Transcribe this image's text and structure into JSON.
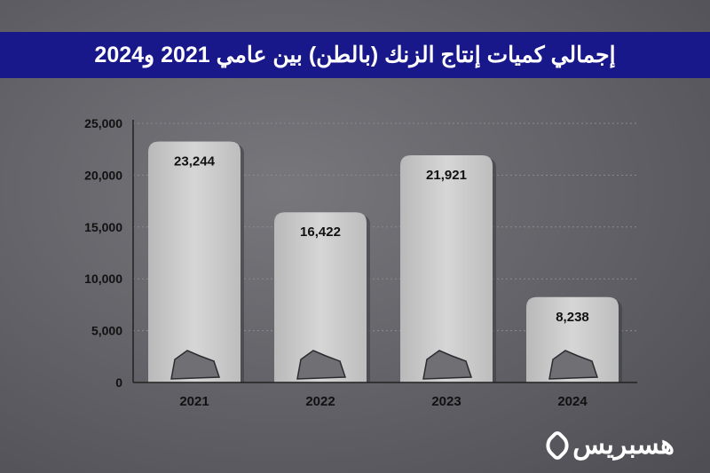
{
  "title": "إجمالي كميات إنتاج الزنك (بالطن) بين عامي 2021 و2024",
  "logo": "هسبريس",
  "colors": {
    "title_bar": "#18188a",
    "bar": "#c9c9c9",
    "background": "#646469"
  },
  "chart_data": {
    "type": "bar",
    "title": "إجمالي كميات إنتاج الزنك (بالطن) بين عامي 2021 و2024",
    "categories": [
      "2021",
      "2022",
      "2023",
      "2024"
    ],
    "values": [
      23244,
      16422,
      21921,
      8238
    ],
    "value_labels": [
      "23,244",
      "16,422",
      "21,921",
      "8,238"
    ],
    "ylim": [
      0,
      25000
    ],
    "yticks": [
      0,
      5000,
      10000,
      15000,
      20000,
      25000
    ],
    "ytick_labels": [
      "0",
      "5,000",
      "10,000",
      "15,000",
      "20,000",
      "25,000"
    ],
    "grid": true,
    "bar_icon": "zinc-ore-icon"
  }
}
